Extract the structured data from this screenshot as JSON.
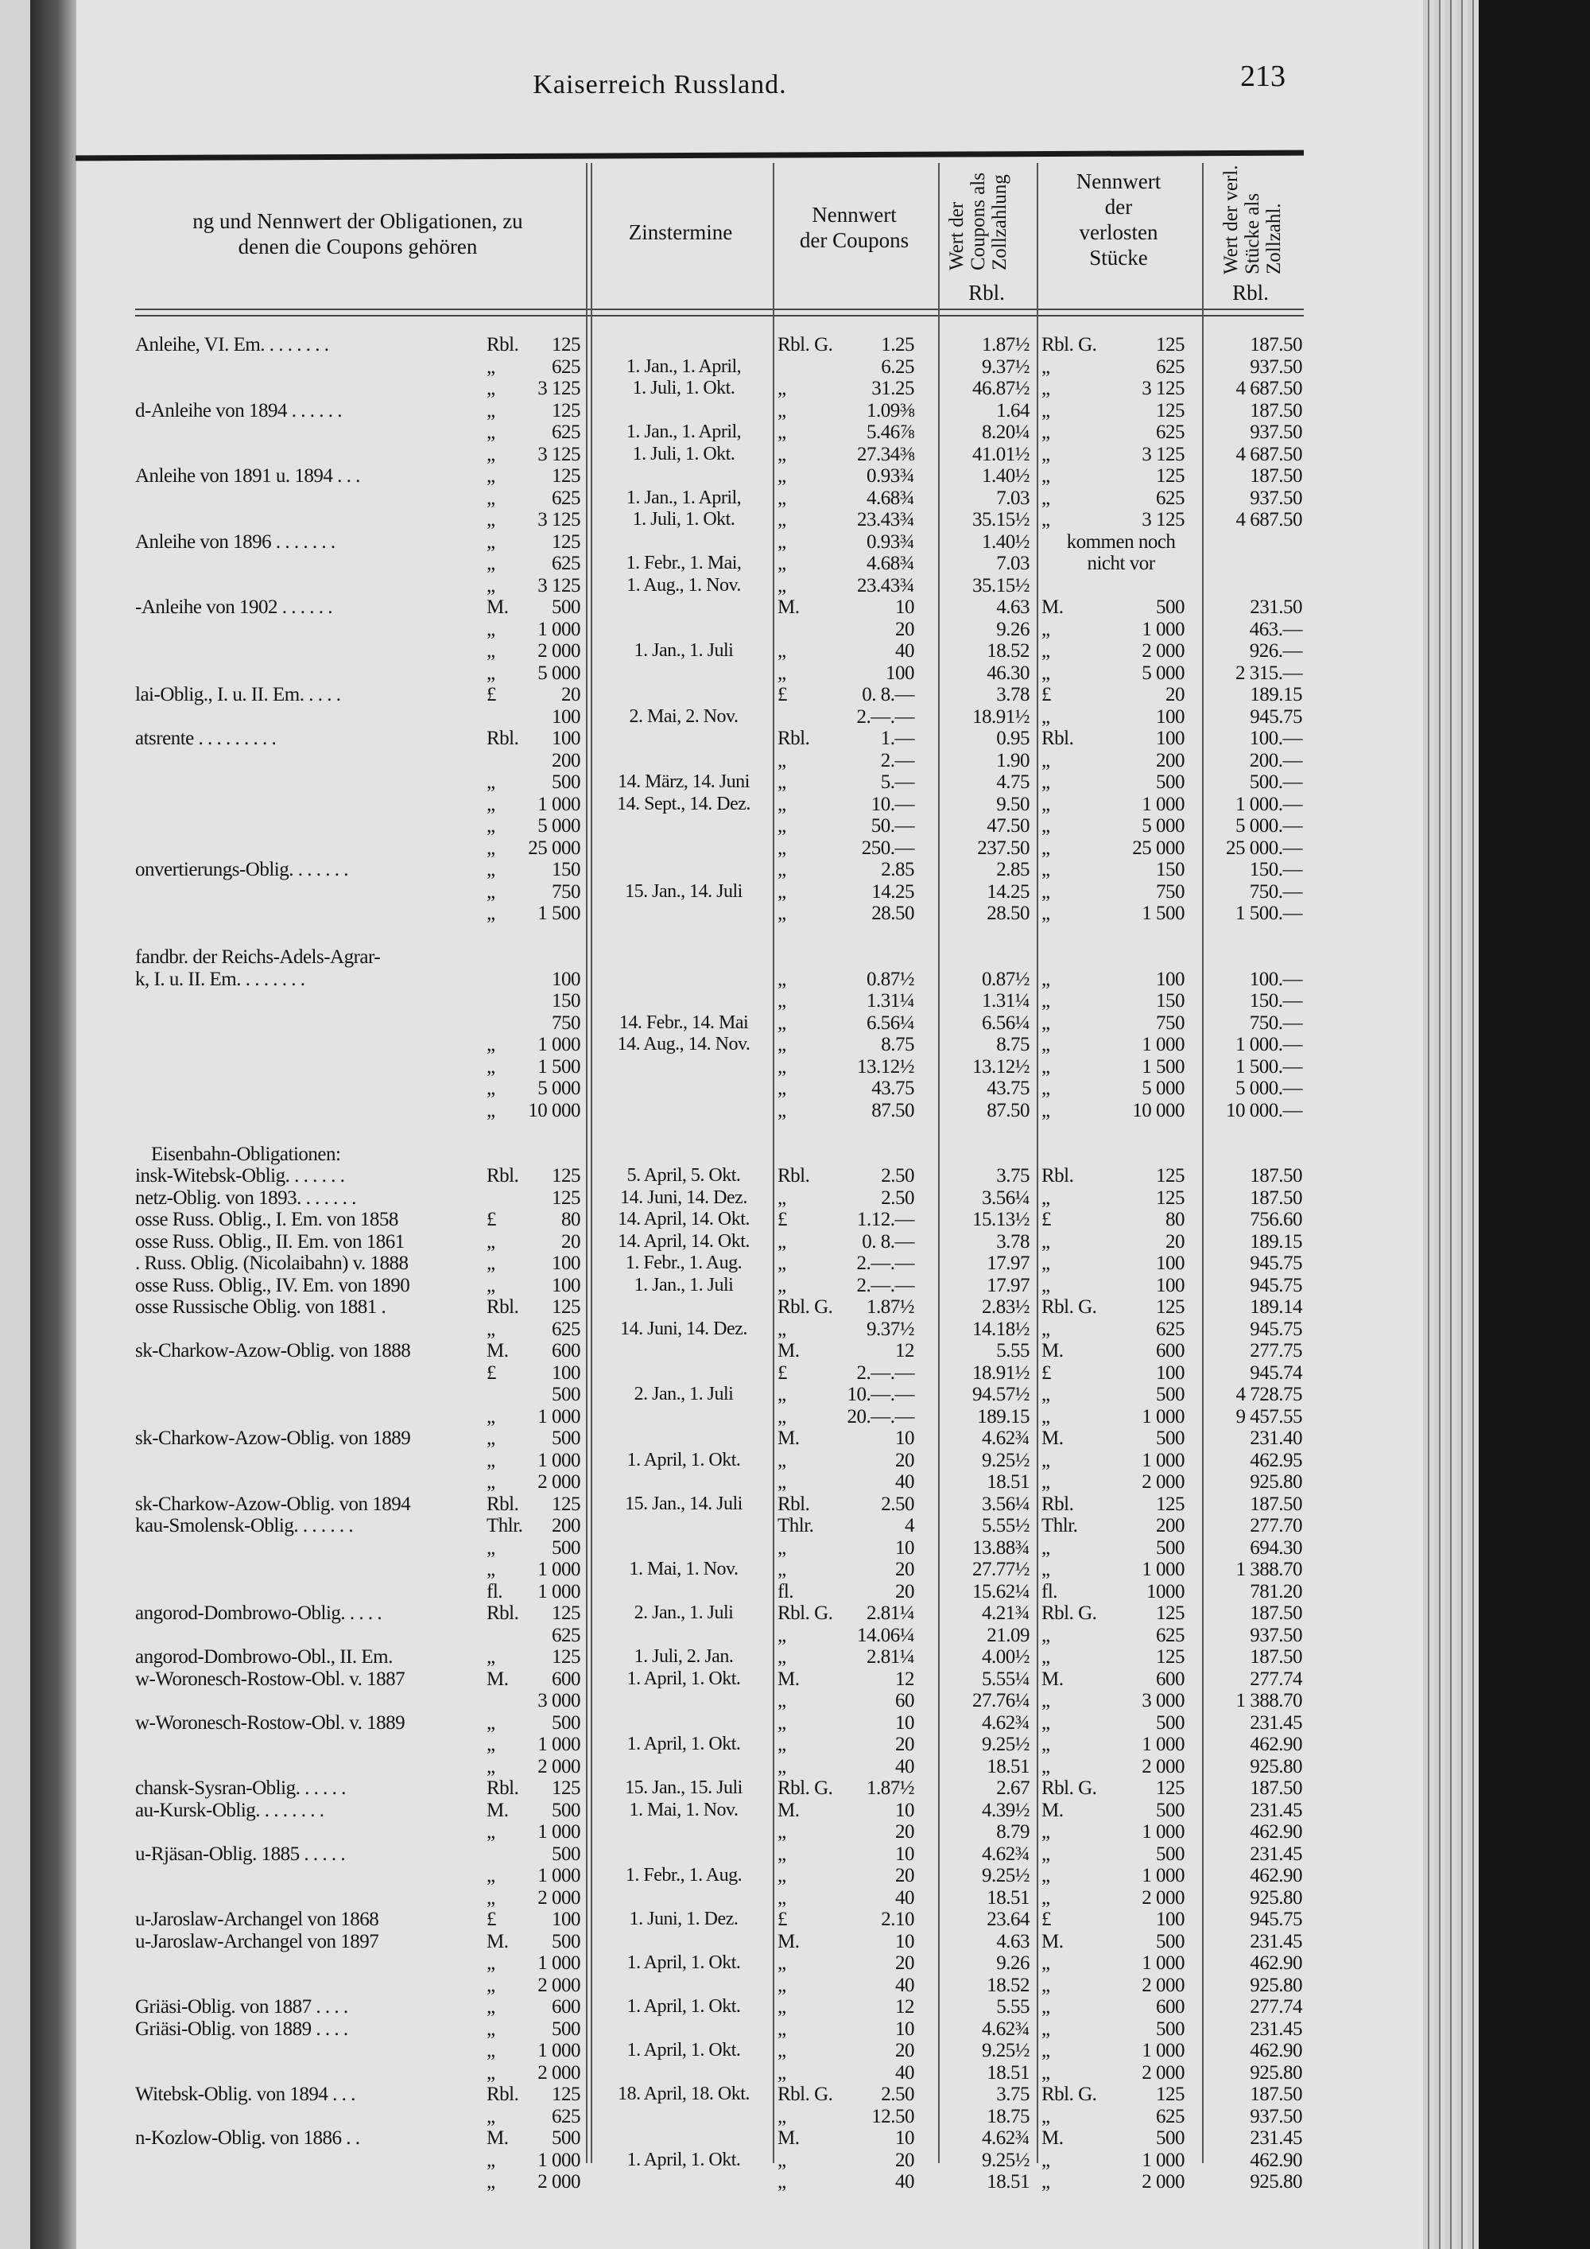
{
  "page": {
    "running_title": "Kaiserreich Russland.",
    "page_number": "213"
  },
  "header": {
    "col_name_1": "ng und Nennwert der Obligationen, zu",
    "col_name_2": "denen die Coupons gehören",
    "col_zins": "Zinstermine",
    "col_coupon_1": "Nennwert",
    "col_coupon_2": "der Coupons",
    "col_cwert": "Wert der Coupons als Zollzahlung",
    "col_cwert_unit": "Rbl.",
    "col_stueck_1": "Nennwert",
    "col_stueck_2": "der",
    "col_stueck_3": "verlosten",
    "col_stueck_4": "Stücke",
    "col_swert": "Wert der verl. Stücke als Zollzahl.",
    "col_swert_unit": "Rbl."
  },
  "rows": [
    [
      "Anleihe, VI. Em. . . . . . . .",
      "Rbl.",
      "125",
      "",
      "Rbl. G.",
      "1.25",
      "1.87½",
      "Rbl. G.",
      "125",
      "187.50"
    ],
    [
      "",
      "„",
      "625",
      "1. Jan., 1. April,",
      "",
      "6.25",
      "9.37½",
      "„",
      "625",
      "937.50"
    ],
    [
      "",
      "„",
      "3 125",
      "1. Juli, 1. Okt.",
      "„",
      "31.25",
      "46.87½",
      "„",
      "3 125",
      "4 687.50"
    ],
    [
      "d-Anleihe von 1894 . . . . . .",
      "„",
      "125",
      "",
      "„",
      "1.09⅜",
      "1.64",
      "„",
      "125",
      "187.50"
    ],
    [
      "",
      "„",
      "625",
      "1. Jan., 1. April,",
      "„",
      "5.46⅞",
      "8.20¼",
      "„",
      "625",
      "937.50"
    ],
    [
      "",
      "„",
      "3 125",
      "1. Juli, 1. Okt.",
      "„",
      "27.34⅜",
      "41.01½",
      "„",
      "3 125",
      "4 687.50"
    ],
    [
      "Anleihe von 1891 u. 1894 . . .",
      "„",
      "125",
      "",
      "„",
      "0.93¾",
      "1.40½",
      "„",
      "125",
      "187.50"
    ],
    [
      "",
      "„",
      "625",
      "1. Jan., 1. April,",
      "„",
      "4.68¾",
      "7.03",
      "„",
      "625",
      "937.50"
    ],
    [
      "",
      "„",
      "3 125",
      "1. Juli, 1. Okt.",
      "„",
      "23.43¾",
      "35.15½",
      "„",
      "3 125",
      "4 687.50"
    ],
    [
      "Anleihe von 1896 . . . . . . .",
      "„",
      "125",
      "",
      "„",
      "0.93¾",
      "1.40½",
      "kommen noch",
      "",
      ""
    ],
    [
      "",
      "„",
      "625",
      "1. Febr., 1. Mai,",
      "„",
      "4.68¾",
      "7.03",
      "nicht vor",
      "",
      ""
    ],
    [
      "",
      "„",
      "3 125",
      "1. Aug., 1. Nov.",
      "„",
      "23.43¾",
      "35.15½",
      "",
      "",
      ""
    ],
    [
      "-Anleihe von 1902 . . . . . .",
      "M.",
      "500",
      "",
      "M.",
      "10",
      "4.63",
      "M.",
      "500",
      "231.50"
    ],
    [
      "",
      "„",
      "1 000",
      "",
      "",
      "20",
      "9.26",
      "„",
      "1 000",
      "463.—"
    ],
    [
      "",
      "„",
      "2 000",
      "1. Jan., 1. Juli",
      "„",
      "40",
      "18.52",
      "„",
      "2 000",
      "926.—"
    ],
    [
      "",
      "„",
      "5 000",
      "",
      "„",
      "100",
      "46.30",
      "„",
      "5 000",
      "2 315.—"
    ],
    [
      "lai-Oblig., I. u. II. Em. . . . .",
      "£",
      "20",
      "",
      "£",
      "0. 8.—",
      "3.78",
      "£",
      "20",
      "189.15"
    ],
    [
      "",
      "",
      "100",
      "2. Mai, 2. Nov.",
      "",
      "2.—.—",
      "18.91½",
      "„",
      "100",
      "945.75"
    ],
    [
      "atsrente . . . . . . . . .",
      "Rbl.",
      "100",
      "",
      "Rbl.",
      "1.—",
      "0.95",
      "Rbl.",
      "100",
      "100.—"
    ],
    [
      "",
      "",
      "200",
      "",
      "„",
      "2.—",
      "1.90",
      "„",
      "200",
      "200.—"
    ],
    [
      "",
      "„",
      "500",
      "14. März, 14. Juni",
      "„",
      "5.—",
      "4.75",
      "„",
      "500",
      "500.—"
    ],
    [
      "",
      "„",
      "1 000",
      "14. Sept., 14. Dez.",
      "„",
      "10.—",
      "9.50",
      "„",
      "1 000",
      "1 000.—"
    ],
    [
      "",
      "„",
      "5 000",
      "",
      "„",
      "50.—",
      "47.50",
      "„",
      "5 000",
      "5 000.—"
    ],
    [
      "",
      "„",
      "25 000",
      "",
      "„",
      "250.—",
      "237.50",
      "„",
      "25 000",
      "25 000.—"
    ],
    [
      "onvertierungs-Oblig. . . . . . .",
      "„",
      "150",
      "",
      "„",
      "2.85",
      "2.85",
      "„",
      "150",
      "150.—"
    ],
    [
      "",
      "„",
      "750",
      "15. Jan., 14. Juli",
      "„",
      "14.25",
      "14.25",
      "„",
      "750",
      "750.—"
    ],
    [
      "",
      "„",
      "1 500",
      "",
      "„",
      "28.50",
      "28.50",
      "„",
      "1 500",
      "1 500.—"
    ],
    [
      "",
      "",
      "",
      "",
      "",
      "",
      "",
      "",
      "",
      ""
    ],
    [
      "fandbr. der Reichs-Adels-Agrar-",
      "",
      "",
      "",
      "",
      "",
      "",
      "",
      "",
      ""
    ],
    [
      "k, I. u. II. Em. . . . . . . .",
      "",
      "100",
      "",
      "„",
      "0.87½",
      "0.87½",
      "„",
      "100",
      "100.—"
    ],
    [
      "",
      "",
      "150",
      "",
      "„",
      "1.31¼",
      "1.31¼",
      "„",
      "150",
      "150.—"
    ],
    [
      "",
      "",
      "750",
      "14. Febr., 14. Mai",
      "„",
      "6.56¼",
      "6.56¼",
      "„",
      "750",
      "750.—"
    ],
    [
      "",
      "„",
      "1 000",
      "14. Aug., 14. Nov.",
      "„",
      "8.75",
      "8.75",
      "„",
      "1 000",
      "1 000.—"
    ],
    [
      "",
      "„",
      "1 500",
      "",
      "„",
      "13.12½",
      "13.12½",
      "„",
      "1 500",
      "1 500.—"
    ],
    [
      "",
      "„",
      "5 000",
      "",
      "„",
      "43.75",
      "43.75",
      "„",
      "5 000",
      "5 000.—"
    ],
    [
      "",
      "„",
      "10 000",
      "",
      "„",
      "87.50",
      "87.50",
      "„",
      "10 000",
      "10 000.—"
    ],
    [
      "",
      "",
      "",
      "",
      "",
      "",
      "",
      "",
      "",
      ""
    ],
    [
      "#Eisenbahn-Obligationen:",
      "",
      "",
      "",
      "",
      "",
      "",
      "",
      "",
      ""
    ],
    [
      "insk-Witebsk-Oblig. . . . . . .",
      "Rbl.",
      "125",
      "5. April, 5. Okt.",
      "Rbl.",
      "2.50",
      "3.75",
      "Rbl.",
      "125",
      "187.50"
    ],
    [
      "netz-Oblig. von 1893. . . . . . .",
      "",
      "125",
      "14. Juni, 14. Dez.",
      "„",
      "2.50",
      "3.56¼",
      "„",
      "125",
      "187.50"
    ],
    [
      "osse Russ. Oblig., I. Em. von 1858",
      "£",
      "80",
      "14. April, 14. Okt.",
      "£",
      "1.12.—",
      "15.13½",
      "£",
      "80",
      "756.60"
    ],
    [
      "osse Russ. Oblig., II. Em. von 1861",
      "„",
      "20",
      "14. April, 14. Okt.",
      "„",
      "0. 8.—",
      "3.78",
      "„",
      "20",
      "189.15"
    ],
    [
      ". Russ. Oblig. (Nicolaibahn) v. 1888",
      "„",
      "100",
      "1. Febr., 1. Aug.",
      "„",
      "2.—.—",
      "17.97",
      "„",
      "100",
      "945.75"
    ],
    [
      "osse Russ. Oblig., IV. Em. von 1890",
      "„",
      "100",
      "1. Jan., 1. Juli",
      "„",
      "2.—.—",
      "17.97",
      "„",
      "100",
      "945.75"
    ],
    [
      "osse Russische Oblig. von 1881 .",
      "Rbl.",
      "125",
      "",
      "Rbl. G.",
      "1.87½",
      "2.83½",
      "Rbl. G.",
      "125",
      "189.14"
    ],
    [
      "",
      "„",
      "625",
      "14. Juni, 14. Dez.",
      "„",
      "9.37½",
      "14.18½",
      "„",
      "625",
      "945.75"
    ],
    [
      "sk-Charkow-Azow-Oblig. von 1888",
      "M.",
      "600",
      "",
      "M.",
      "12",
      "5.55",
      "M.",
      "600",
      "277.75"
    ],
    [
      "",
      "£",
      "100",
      "",
      "£",
      "2.—.—",
      "18.91½",
      "£",
      "100",
      "945.74"
    ],
    [
      "",
      "",
      "500",
      "2. Jan., 1. Juli",
      "„",
      "10.—.—",
      "94.57½",
      "„",
      "500",
      "4 728.75"
    ],
    [
      "",
      "„",
      "1 000",
      "",
      "„",
      "20.—.—",
      "189.15",
      "„",
      "1 000",
      "9 457.55"
    ],
    [
      "sk-Charkow-Azow-Oblig. von 1889",
      "„",
      "500",
      "",
      "M.",
      "10",
      "4.62¾",
      "M.",
      "500",
      "231.40"
    ],
    [
      "",
      "„",
      "1 000",
      "1. April, 1. Okt.",
      "„",
      "20",
      "9.25½",
      "„",
      "1 000",
      "462.95"
    ],
    [
      "",
      "„",
      "2 000",
      "",
      "„",
      "40",
      "18.51",
      "„",
      "2 000",
      "925.80"
    ],
    [
      "sk-Charkow-Azow-Oblig. von 1894",
      "Rbl.",
      "125",
      "15. Jan., 14. Juli",
      "Rbl.",
      "2.50",
      "3.56¼",
      "Rbl.",
      "125",
      "187.50"
    ],
    [
      "kau-Smolensk-Oblig. . . . . . .",
      "Thlr.",
      "200",
      "",
      "Thlr.",
      "4",
      "5.55½",
      "Thlr.",
      "200",
      "277.70"
    ],
    [
      "",
      "„",
      "500",
      "",
      "„",
      "10",
      "13.88¾",
      "„",
      "500",
      "694.30"
    ],
    [
      "",
      "„",
      "1 000",
      "1. Mai, 1. Nov.",
      "„",
      "20",
      "27.77½",
      "„",
      "1 000",
      "1 388.70"
    ],
    [
      "",
      "fl.",
      "1 000",
      "",
      "fl.",
      "20",
      "15.62¼",
      "fl.",
      "1000",
      "781.20"
    ],
    [
      "angorod-Dombrowo-Oblig. . . . .",
      "Rbl.",
      "125",
      "2. Jan., 1. Juli",
      "Rbl. G.",
      "2.81¼",
      "4.21¾",
      "Rbl. G.",
      "125",
      "187.50"
    ],
    [
      "",
      "",
      "625",
      "",
      "„",
      "14.06¼",
      "21.09",
      "„",
      "625",
      "937.50"
    ],
    [
      "angorod-Dombrowo-Obl., II. Em.",
      "„",
      "125",
      "1. Juli, 2. Jan.",
      "„",
      "2.81¼",
      "4.00½",
      "„",
      "125",
      "187.50"
    ],
    [
      "w-Woronesch-Rostow-Obl. v. 1887",
      "M.",
      "600",
      "1. April, 1. Okt.",
      "M.",
      "12",
      "5.55¼",
      "M.",
      "600",
      "277.74"
    ],
    [
      "",
      "",
      "3 000",
      "",
      "„",
      "60",
      "27.76¼",
      "„",
      "3 000",
      "1 388.70"
    ],
    [
      "w-Woronesch-Rostow-Obl. v. 1889",
      "„",
      "500",
      "",
      "„",
      "10",
      "4.62¾",
      "„",
      "500",
      "231.45"
    ],
    [
      "",
      "„",
      "1 000",
      "1. April, 1. Okt.",
      "„",
      "20",
      "9.25½",
      "„",
      "1 000",
      "462.90"
    ],
    [
      "",
      "„",
      "2 000",
      "",
      "„",
      "40",
      "18.51",
      "„",
      "2 000",
      "925.80"
    ],
    [
      "chansk-Sysran-Oblig. . . . . .",
      "Rbl.",
      "125",
      "15. Jan., 15. Juli",
      "Rbl. G.",
      "1.87½",
      "2.67",
      "Rbl. G.",
      "125",
      "187.50"
    ],
    [
      "au-Kursk-Oblig. . . . . . . .",
      "M.",
      "500",
      "1. Mai, 1. Nov.",
      "M.",
      "10",
      "4.39½",
      "M.",
      "500",
      "231.45"
    ],
    [
      "",
      "„",
      "1 000",
      "",
      "„",
      "20",
      "8.79",
      "„",
      "1 000",
      "462.90"
    ],
    [
      "u-Rjäsan-Oblig. 1885 . . . . .",
      "",
      "500",
      "",
      "„",
      "10",
      "4.62¾",
      "„",
      "500",
      "231.45"
    ],
    [
      "",
      "„",
      "1 000",
      "1. Febr., 1. Aug.",
      "„",
      "20",
      "9.25½",
      "„",
      "1 000",
      "462.90"
    ],
    [
      "",
      "„",
      "2 000",
      "",
      "„",
      "40",
      "18.51",
      "„",
      "2 000",
      "925.80"
    ],
    [
      "u-Jaroslaw-Archangel von 1868",
      "£",
      "100",
      "1. Juni, 1. Dez.",
      "£",
      "2.10",
      "23.64",
      "£",
      "100",
      "945.75"
    ],
    [
      "u-Jaroslaw-Archangel von 1897",
      "M.",
      "500",
      "",
      "M.",
      "10",
      "4.63",
      "M.",
      "500",
      "231.45"
    ],
    [
      "",
      "„",
      "1 000",
      "1. April, 1. Okt.",
      "„",
      "20",
      "9.26",
      "„",
      "1 000",
      "462.90"
    ],
    [
      "",
      "„",
      "2 000",
      "",
      "„",
      "40",
      "18.52",
      "„",
      "2 000",
      "925.80"
    ],
    [
      "Griäsi-Oblig. von 1887 . . . .",
      "„",
      "600",
      "1. April, 1. Okt.",
      "„",
      "12",
      "5.55",
      "„",
      "600",
      "277.74"
    ],
    [
      "Griäsi-Oblig. von 1889 . . . .",
      "„",
      "500",
      "",
      "„",
      "10",
      "4.62¾",
      "„",
      "500",
      "231.45"
    ],
    [
      "",
      "„",
      "1 000",
      "1. April, 1. Okt.",
      "„",
      "20",
      "9.25½",
      "„",
      "1 000",
      "462.90"
    ],
    [
      "",
      "„",
      "2 000",
      "",
      "„",
      "40",
      "18.51",
      "„",
      "2 000",
      "925.80"
    ],
    [
      "Witebsk-Oblig. von 1894 . . .",
      "Rbl.",
      "125",
      "18. April, 18. Okt.",
      "Rbl. G.",
      "2.50",
      "3.75",
      "Rbl. G.",
      "125",
      "187.50"
    ],
    [
      "",
      "„",
      "625",
      "",
      "„",
      "12.50",
      "18.75",
      "„",
      "625",
      "937.50"
    ],
    [
      "n-Kozlow-Oblig. von 1886 . .",
      "M.",
      "500",
      "",
      "M.",
      "10",
      "4.62¾",
      "M.",
      "500",
      "231.45"
    ],
    [
      "",
      "„",
      "1 000",
      "1. April, 1. Okt.",
      "„",
      "20",
      "9.25½",
      "„",
      "1 000",
      "462.90"
    ],
    [
      "",
      "„",
      "2 000",
      "",
      "„",
      "40",
      "18.51",
      "„",
      "2 000",
      "925.80"
    ]
  ]
}
